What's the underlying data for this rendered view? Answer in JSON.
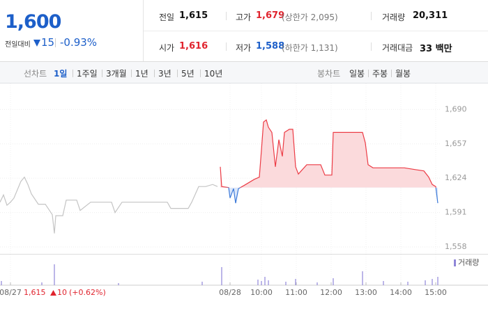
{
  "quote": {
    "price": "1,600",
    "change_label": "전일대비",
    "change": "15",
    "change_pct": "-0.93%"
  },
  "stats": [
    {
      "label": "전일",
      "value": "1,615"
    },
    {
      "label": "고가",
      "value": "1,679",
      "limit": "(상한가 2,095)"
    },
    {
      "label": "거래량",
      "value": "20,311"
    },
    {
      "label": "시가",
      "value": "1,616"
    },
    {
      "label": "저가",
      "value": "1,588",
      "limit": "(하한가 1,131)"
    },
    {
      "label": "거래대금",
      "value": "33 백만"
    }
  ],
  "tabs": {
    "line_label": "선차트",
    "line": [
      "1일",
      "1주일",
      "3개월",
      "1년",
      "3년",
      "5년",
      "10년"
    ],
    "candle_label": "봉차트",
    "candle": [
      "일봉",
      "주봉",
      "월봉"
    ]
  },
  "footer": {
    "price": "1,615",
    "change": "10",
    "change_pct": "(+0.62%)"
  },
  "chart_data": {
    "type": "line",
    "xlim": [
      2.5,
      16.5
    ],
    "ylim": [
      1551,
      1715
    ],
    "baseline": 1615,
    "grid": true,
    "xticks": [
      {
        "value": 2.8,
        "label": "08/27"
      },
      {
        "value": 9.1,
        "label": "08/28"
      },
      {
        "value": 10,
        "label": "10:00"
      },
      {
        "value": 11,
        "label": "11:00"
      },
      {
        "value": 12,
        "label": "12:00"
      },
      {
        "value": 13,
        "label": "13:00"
      },
      {
        "value": 14,
        "label": "14:00"
      },
      {
        "value": 15,
        "label": "15:00"
      }
    ],
    "yticks": [
      {
        "value": 1558,
        "label": "1,558"
      },
      {
        "value": 1591,
        "label": "1,591"
      },
      {
        "value": 1624,
        "label": "1,624"
      },
      {
        "value": 1657,
        "label": "1,657"
      },
      {
        "value": 1690,
        "label": "1,690"
      }
    ],
    "series": [
      {
        "color": "#c4c4c4",
        "x": [
          2.5,
          2.6,
          2.7,
          2.8,
          2.9,
          3.1,
          3.2,
          3.3,
          3.4,
          3.6,
          3.8,
          4.0,
          4.06,
          4.1,
          4.3,
          4.4,
          4.7,
          4.8,
          5.1,
          5.7,
          5.8,
          6.0,
          6.5,
          7.3,
          7.4,
          7.9,
          8.0,
          8.2,
          8.4,
          8.6,
          8.74
        ],
        "values": [
          1601,
          1608,
          1598,
          1601,
          1605,
          1621,
          1625,
          1618,
          1609,
          1599,
          1599,
          1589,
          1571,
          1588,
          1588,
          1603,
          1603,
          1593,
          1601,
          1601,
          1591,
          1601,
          1601,
          1601,
          1595,
          1595,
          1601,
          1616,
          1616,
          1618,
          1616
        ]
      },
      {
        "color": "#ec3b45",
        "down_color": "#3a78d8",
        "fill": "#fbdadc",
        "down_fill": "#dbe7fa",
        "x": [
          8.82,
          8.86,
          9.06,
          9.1,
          9.2,
          9.26,
          9.34,
          9.5,
          9.8,
          9.94,
          10.0,
          10.06,
          10.14,
          10.2,
          10.3,
          10.4,
          10.5,
          10.6,
          10.66,
          10.8,
          10.9,
          10.98,
          11.06,
          11.3,
          11.7,
          11.82,
          12.02,
          12.06,
          12.9,
          12.98,
          13.06,
          13.2,
          14.1,
          14.46,
          14.66,
          14.8,
          14.9,
          15.0,
          15.06
        ],
        "values": [
          1635,
          1616,
          1615,
          1605,
          1614,
          1600,
          1614,
          1617,
          1623,
          1625,
          1651,
          1678,
          1680,
          1673,
          1668,
          1635,
          1661,
          1645,
          1668,
          1671,
          1671,
          1635,
          1628,
          1637,
          1637,
          1627,
          1627,
          1668,
          1668,
          1658,
          1637,
          1634,
          1634,
          1632,
          1631,
          1625,
          1618,
          1616,
          1600
        ]
      }
    ],
    "volume": {
      "name": "거래량",
      "color": "#8f86d8",
      "vlim": [
        0,
        40
      ],
      "x": [
        2.54,
        3.7,
        4.06,
        5.9,
        8.3,
        8.86,
        9.9,
        10.0,
        10.1,
        10.2,
        10.7,
        10.98,
        11.6,
        12.06,
        12.9,
        13.5,
        14.2,
        14.7,
        14.9,
        15.06
      ],
      "values": [
        6,
        4,
        30,
        3,
        5,
        26,
        8,
        6,
        12,
        7,
        5,
        9,
        4,
        10,
        20,
        6,
        5,
        7,
        9,
        12
      ]
    }
  }
}
